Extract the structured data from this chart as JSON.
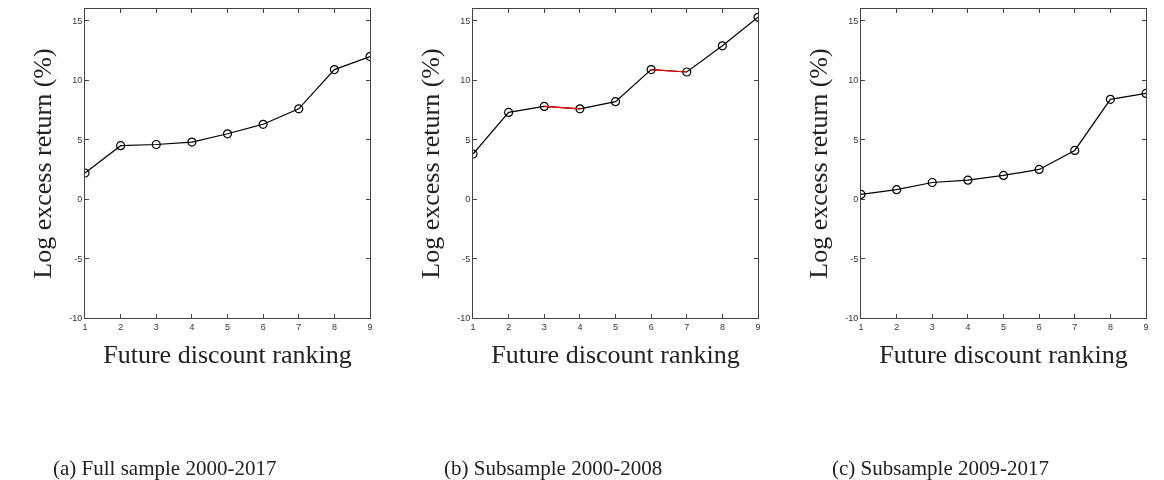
{
  "chart_data": [
    {
      "type": "line",
      "title": "(a) Full sample 2000-2017",
      "xlabel": "Future discount ranking",
      "ylabel": "Log excess return (%)",
      "x": [
        1,
        2,
        3,
        4,
        5,
        6,
        7,
        8,
        9
      ],
      "xlim": [
        1,
        9
      ],
      "xticks": [
        1,
        2,
        3,
        4,
        5,
        6,
        7,
        8,
        9
      ],
      "ylim": [
        -10,
        16
      ],
      "yticks": [
        -10,
        -5,
        0,
        5,
        10,
        15
      ],
      "marker": "circle",
      "line_style": "solid",
      "series": [
        {
          "color": "#000000",
          "values": [
            2.2,
            4.5,
            4.6,
            4.8,
            5.5,
            6.3,
            7.6,
            10.9,
            12.0
          ]
        }
      ]
    },
    {
      "type": "line",
      "title": "(b) Subsample 2000-2008",
      "xlabel": "Future discount ranking",
      "ylabel": "Log excess return (%)",
      "x": [
        1,
        2,
        3,
        4,
        5,
        6,
        7,
        8,
        9
      ],
      "xlim": [
        1,
        9
      ],
      "xticks": [
        1,
        2,
        3,
        4,
        5,
        6,
        7,
        8,
        9
      ],
      "ylim": [
        -10,
        16
      ],
      "yticks": [
        -10,
        -5,
        0,
        5,
        10,
        15
      ],
      "marker": "circle",
      "line_style": "solid",
      "series": [
        {
          "color": "#000000",
          "values": [
            3.8,
            7.3,
            7.8,
            7.6,
            8.2,
            10.9,
            10.7,
            12.9,
            15.3
          ]
        },
        {
          "color": "#ff0000",
          "marker": "none",
          "values": [
            null,
            null,
            7.8,
            7.6,
            null,
            10.9,
            10.7,
            null,
            null
          ]
        }
      ]
    },
    {
      "type": "line",
      "title": "(c) Subsample 2009-2017",
      "xlabel": "Future discount ranking",
      "ylabel": "Log excess return (%)",
      "x": [
        1,
        2,
        3,
        4,
        5,
        6,
        7,
        8,
        9
      ],
      "xlim": [
        1,
        9
      ],
      "xticks": [
        1,
        2,
        3,
        4,
        5,
        6,
        7,
        8,
        9
      ],
      "ylim": [
        -10,
        16
      ],
      "yticks": [
        -10,
        -5,
        0,
        5,
        10,
        15
      ],
      "marker": "circle",
      "line_style": "solid",
      "series": [
        {
          "color": "#000000",
          "values": [
            0.4,
            0.8,
            1.4,
            1.6,
            2.0,
            2.5,
            4.1,
            8.4,
            8.9
          ]
        }
      ]
    }
  ]
}
